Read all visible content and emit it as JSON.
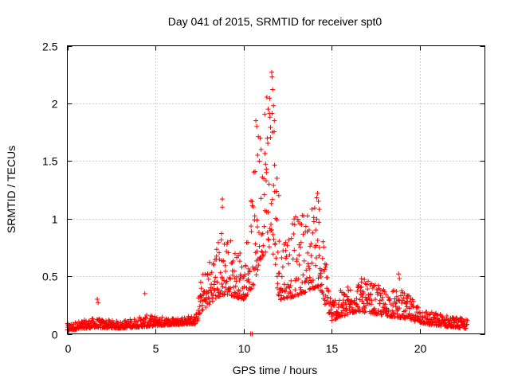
{
  "chart_data": {
    "type": "scatter",
    "title": "Day 041 of 2015, SRMTID for receiver spt0",
    "xlabel": "GPS time / hours",
    "ylabel": "SRMTID / TECUs",
    "xlim": [
      0,
      23.7
    ],
    "ylim": [
      0,
      2.5
    ],
    "xticks": [
      0,
      5,
      10,
      15,
      20
    ],
    "yticks": [
      0,
      0.5,
      1,
      1.5,
      2,
      2.5
    ],
    "xtick_labels": [
      "0",
      "5",
      "10",
      "15",
      "20"
    ],
    "ytick_labels": [
      "0",
      "0.5",
      "1",
      "1.5",
      "2",
      "2.5"
    ],
    "grid": true,
    "marker": "+",
    "series": [
      {
        "name": "spt0",
        "color": "#ff0000",
        "profile": [
          {
            "x": 0.0,
            "y": 0.04,
            "spread": 0.03
          },
          {
            "x": 1.5,
            "y": 0.07,
            "spread": 0.04
          },
          {
            "x": 3.0,
            "y": 0.06,
            "spread": 0.03
          },
          {
            "x": 4.5,
            "y": 0.08,
            "spread": 0.05
          },
          {
            "x": 6.0,
            "y": 0.09,
            "spread": 0.03
          },
          {
            "x": 7.3,
            "y": 0.1,
            "spread": 0.04
          },
          {
            "x": 7.6,
            "y": 0.25,
            "spread": 0.15
          },
          {
            "x": 8.5,
            "y": 0.4,
            "spread": 0.25
          },
          {
            "x": 9.0,
            "y": 0.45,
            "spread": 0.3
          },
          {
            "x": 10.0,
            "y": 0.35,
            "spread": 0.15
          },
          {
            "x": 10.6,
            "y": 0.6,
            "spread": 0.5
          },
          {
            "x": 11.0,
            "y": 0.9,
            "spread": 0.7
          },
          {
            "x": 11.6,
            "y": 1.1,
            "spread": 0.9
          },
          {
            "x": 12.0,
            "y": 0.4,
            "spread": 0.3
          },
          {
            "x": 13.0,
            "y": 0.45,
            "spread": 0.35
          },
          {
            "x": 14.2,
            "y": 0.55,
            "spread": 0.4
          },
          {
            "x": 15.0,
            "y": 0.15,
            "spread": 0.1
          },
          {
            "x": 16.5,
            "y": 0.25,
            "spread": 0.15
          },
          {
            "x": 18.0,
            "y": 0.2,
            "spread": 0.12
          },
          {
            "x": 19.0,
            "y": 0.18,
            "spread": 0.12
          },
          {
            "x": 20.5,
            "y": 0.1,
            "spread": 0.06
          },
          {
            "x": 22.7,
            "y": 0.06,
            "spread": 0.04
          }
        ],
        "spikes": [
          {
            "x": 1.7,
            "y": 0.3
          },
          {
            "x": 1.75,
            "y": 0.27
          },
          {
            "x": 4.4,
            "y": 0.35
          },
          {
            "x": 8.8,
            "y": 1.17
          },
          {
            "x": 8.8,
            "y": 1.1
          },
          {
            "x": 8.75,
            "y": 0.87
          },
          {
            "x": 9.8,
            "y": 0.7
          },
          {
            "x": 10.7,
            "y": 1.85
          },
          {
            "x": 10.75,
            "y": 1.8
          },
          {
            "x": 10.8,
            "y": 1.55
          },
          {
            "x": 11.0,
            "y": 1.6
          },
          {
            "x": 11.4,
            "y": 1.95
          },
          {
            "x": 11.5,
            "y": 1.88
          },
          {
            "x": 11.6,
            "y": 2.27
          },
          {
            "x": 11.62,
            "y": 2.23
          },
          {
            "x": 11.65,
            "y": 2.12
          },
          {
            "x": 11.7,
            "y": 1.98
          },
          {
            "x": 11.75,
            "y": 1.85
          },
          {
            "x": 11.3,
            "y": 1.4
          },
          {
            "x": 11.9,
            "y": 1.35
          },
          {
            "x": 12.0,
            "y": 1.2
          },
          {
            "x": 13.3,
            "y": 0.95
          },
          {
            "x": 14.2,
            "y": 1.22
          },
          {
            "x": 14.25,
            "y": 1.15
          },
          {
            "x": 14.3,
            "y": 1.08
          },
          {
            "x": 14.1,
            "y": 0.9
          },
          {
            "x": 16.7,
            "y": 0.45
          },
          {
            "x": 18.8,
            "y": 0.52
          },
          {
            "x": 18.85,
            "y": 0.48
          },
          {
            "x": 10.4,
            "y": 0.0
          },
          {
            "x": 10.5,
            "y": 0.0
          }
        ]
      }
    ]
  }
}
